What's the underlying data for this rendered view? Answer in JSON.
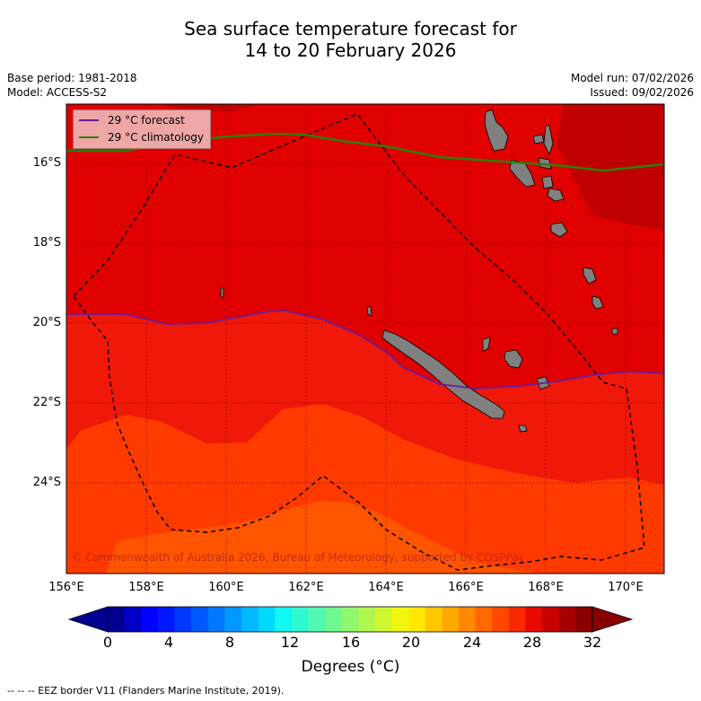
{
  "title_line1": "Sea surface temperature forecast for",
  "title_line2": "14 to 20 February 2026",
  "base_period": "Base period: 1981-2018",
  "model": "Model: ACCESS-S2",
  "model_run": "Model run: 07/02/2026",
  "issued": "Issued: 09/02/2026",
  "lat_labels": [
    "16°S",
    "18°S",
    "20°S",
    "22°S",
    "24°S"
  ],
  "lon_labels": [
    "156°E",
    "158°E",
    "160°E",
    "162°E",
    "164°E",
    "166°E",
    "168°E",
    "170°E"
  ],
  "legend": {
    "forecast_label": "29 °C  forecast",
    "climatology_label": "29 °C  climatology",
    "forecast_color": "#6a1b9a",
    "climatology_color": "#2e7d0a"
  },
  "copyright": "© Commonwealth of Australia 2026, Bureau of Meteorology, supported by COSPPac",
  "colorbar": {
    "tick_labels": [
      "0",
      "4",
      "8",
      "12",
      "16",
      "20",
      "24",
      "28",
      "32"
    ],
    "unit_label": "Degrees (°C)",
    "colors": [
      "#00008f",
      "#0000c8",
      "#0000ff",
      "#0018ff",
      "#0038ff",
      "#0058ff",
      "#0078ff",
      "#0098ff",
      "#00b8ff",
      "#00d8ff",
      "#10f8f0",
      "#30f8d0",
      "#50f8b0",
      "#70f890",
      "#90f870",
      "#b0f850",
      "#d0f830",
      "#f0f810",
      "#ffe800",
      "#ffc800",
      "#ffa800",
      "#ff8800",
      "#ff6800",
      "#ff4800",
      "#f82800",
      "#e80800",
      "#c80000",
      "#a80000",
      "#880000"
    ]
  },
  "footnote": "--  --  -- EEZ border V11 (Flanders Marine Institute, 2019).",
  "sst_colors": {
    "c32": "#c00000",
    "c30": "#e00000",
    "c29": "#f01808",
    "c28": "#ff3a00",
    "c27": "#ff5400"
  }
}
